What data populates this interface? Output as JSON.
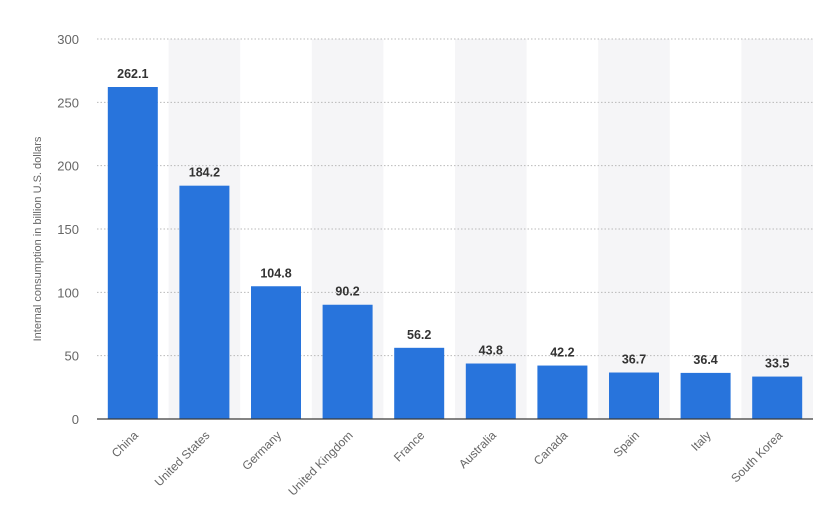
{
  "chart_data": {
    "type": "bar",
    "title": "",
    "xlabel": "",
    "ylabel": "Internal consumption in billion U.S. dollars",
    "ylim": [
      0,
      300
    ],
    "yticks": [
      0,
      50,
      100,
      150,
      200,
      250,
      300
    ],
    "grid": true,
    "categories": [
      "China",
      "United States",
      "Germany",
      "United Kingdom",
      "France",
      "Australia",
      "Canada",
      "Spain",
      "Italy",
      "South Korea"
    ],
    "values": [
      262.1,
      184.2,
      104.8,
      90.2,
      56.2,
      43.8,
      42.2,
      36.7,
      36.4,
      33.5
    ],
    "value_labels": [
      "262.1",
      "184.2",
      "104.8",
      "90.2",
      "56.2",
      "43.8",
      "42.2",
      "36.7",
      "36.4",
      "33.5"
    ],
    "colors": {
      "bar": "#2874dc",
      "alt_band": "#f5f5f7",
      "grid": "#b9b9b9",
      "axis": "#3a3a3a",
      "tick_text": "#666666",
      "value_text": "#333333"
    }
  }
}
